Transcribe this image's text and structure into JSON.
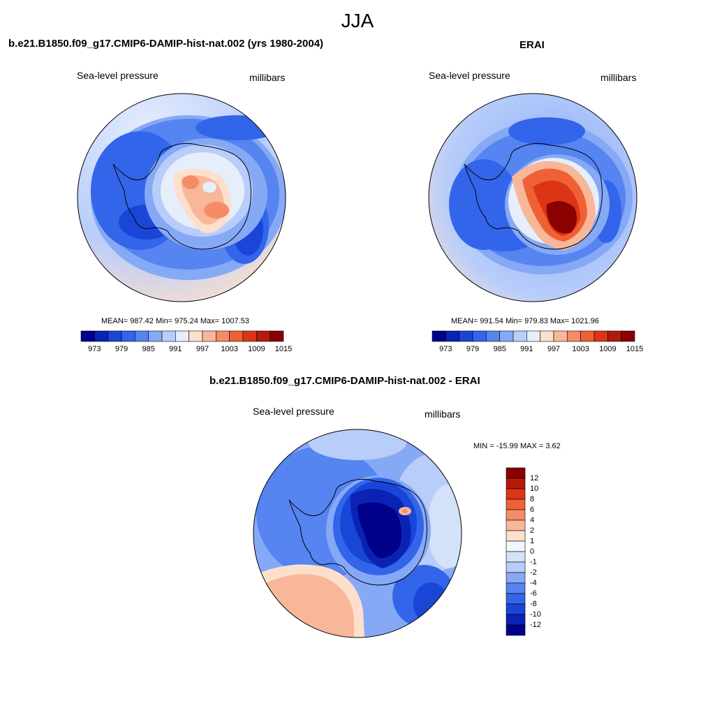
{
  "main_title": "JJA",
  "panels": [
    {
      "title": "b.e21.B1850.f09_g17.CMIP6-DAMIP-hist-nat.002 (yrs 1980-2004)",
      "variable": "Sea-level pressure",
      "units": "millibars",
      "stats": "MEAN= 987.42  Min= 975.24  Max= 1007.53"
    },
    {
      "title": "ERAI",
      "variable": "Sea-level pressure",
      "units": "millibars",
      "stats": "MEAN= 991.54  Min= 979.83  Max= 1021.96"
    },
    {
      "title": "b.e21.B1850.f09_g17.CMIP6-DAMIP-hist-nat.002 - ERAI",
      "variable": "Sea-level pressure",
      "units": "millibars",
      "stats": "MIN = -15.99 MAX =   3.62"
    }
  ],
  "chart_data": [
    {
      "type": "contour-map",
      "projection": "south-polar stereographic",
      "title": "b.e21.B1850.f09_g17.CMIP6-DAMIP-hist-nat.002 (yrs 1980-2004)",
      "variable": "Sea-level pressure",
      "units": "millibars",
      "mean": 987.42,
      "min": 975.24,
      "max": 1007.53,
      "colorbar_ticks": [
        "973",
        "979",
        "985",
        "991",
        "997",
        "1003",
        "1009",
        "1015"
      ],
      "colors": [
        "#00008b",
        "#0a23b4",
        "#1a46d8",
        "#3265ea",
        "#5684f0",
        "#86a9f6",
        "#b8cdfa",
        "#e6eefc",
        "#fde0cc",
        "#f9b79a",
        "#f58c68",
        "#ef6035",
        "#dc3515",
        "#b41a0a",
        "#8b0000"
      ]
    },
    {
      "type": "contour-map",
      "projection": "south-polar stereographic",
      "title": "ERAI",
      "variable": "Sea-level pressure",
      "units": "millibars",
      "mean": 991.54,
      "min": 979.83,
      "max": 1021.96,
      "colorbar_ticks": [
        "973",
        "979",
        "985",
        "991",
        "997",
        "1003",
        "1009",
        "1015"
      ],
      "colors": [
        "#00008b",
        "#0a23b4",
        "#1a46d8",
        "#3265ea",
        "#5684f0",
        "#86a9f6",
        "#b8cdfa",
        "#e6eefc",
        "#fde0cc",
        "#f9b79a",
        "#f58c68",
        "#ef6035",
        "#dc3515",
        "#b41a0a",
        "#8b0000"
      ]
    },
    {
      "type": "contour-map",
      "projection": "south-polar stereographic",
      "title": "b.e21.B1850.f09_g17.CMIP6-DAMIP-hist-nat.002 - ERAI",
      "variable": "Sea-level pressure",
      "units": "millibars",
      "min": -15.99,
      "max": 3.62,
      "colorbar_ticks": [
        "12",
        "10",
        "8",
        "6",
        "4",
        "2",
        "1",
        "0",
        "-1",
        "-2",
        "-4",
        "-6",
        "-8",
        "-10",
        "-12"
      ],
      "colors": [
        "#8b0000",
        "#b41a0a",
        "#dc3515",
        "#ef6035",
        "#f58c68",
        "#f9b79a",
        "#fde0cc",
        "#f2f5fb",
        "#d4e2f9",
        "#b8cdfa",
        "#86a9f6",
        "#5684f0",
        "#3265ea",
        "#1a46d8",
        "#0a23b4",
        "#00008b"
      ]
    }
  ]
}
